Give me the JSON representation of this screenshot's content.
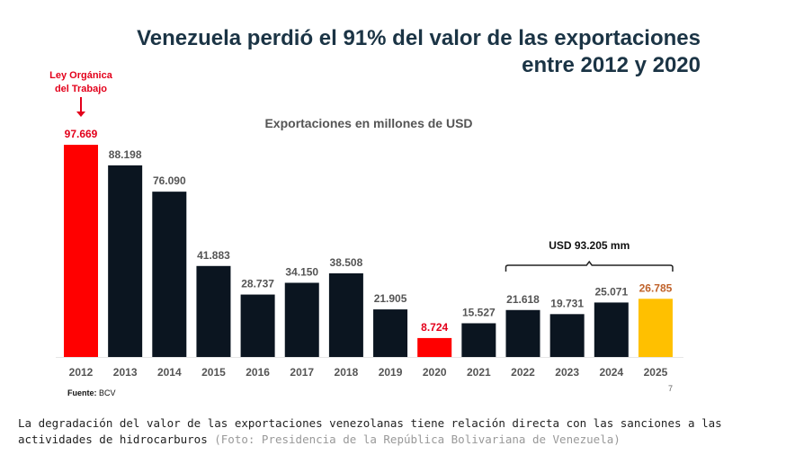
{
  "title_line1": "Venezuela perdió el 91% del valor de las exportaciones",
  "title_line2": "entre 2012 y 2020",
  "chart_data": {
    "type": "bar",
    "title": "Exportaciones en millones de USD",
    "categories": [
      "2012",
      "2013",
      "2014",
      "2015",
      "2016",
      "2017",
      "2018",
      "2019",
      "2020",
      "2021",
      "2022",
      "2023",
      "2024",
      "2025"
    ],
    "values": [
      97669,
      88198,
      76090,
      41883,
      28737,
      34150,
      38508,
      21905,
      8724,
      15527,
      21618,
      19731,
      25071,
      26785
    ],
    "labels": [
      "97.669",
      "88.198",
      "76.090",
      "41.883",
      "28.737",
      "34.150",
      "38.508",
      "21.905",
      "8.724",
      "15.527",
      "21.618",
      "19.731",
      "25.071",
      "26.785"
    ],
    "bar_colors": [
      "#ff0000",
      "#0b1520",
      "#0b1520",
      "#0b1520",
      "#0b1520",
      "#0b1520",
      "#0b1520",
      "#0b1520",
      "#ff0000",
      "#0b1520",
      "#0b1520",
      "#0b1520",
      "#0b1520",
      "#ffc000"
    ],
    "label_colors": [
      "#e3001b",
      "#555555",
      "#555555",
      "#555555",
      "#555555",
      "#555555",
      "#555555",
      "#555555",
      "#e3001b",
      "#555555",
      "#555555",
      "#555555",
      "#555555",
      "#c0622a"
    ],
    "annotation": "Ley Orgánica del Trabajo",
    "bracket_label": "USD 93.205 mm",
    "bracket_range": [
      "2022",
      "2025"
    ],
    "ylim": [
      0,
      100000
    ]
  },
  "source_label": "Fuente:",
  "source_value": "BCV",
  "page_number": "7",
  "caption": "La degradación del valor de las exportaciones venezolanas tiene relación directa con las sanciones a las actividades de hidrocarburos",
  "caption_credit": "(Foto: Presidencia de la República Bolivariana de Venezuela)"
}
